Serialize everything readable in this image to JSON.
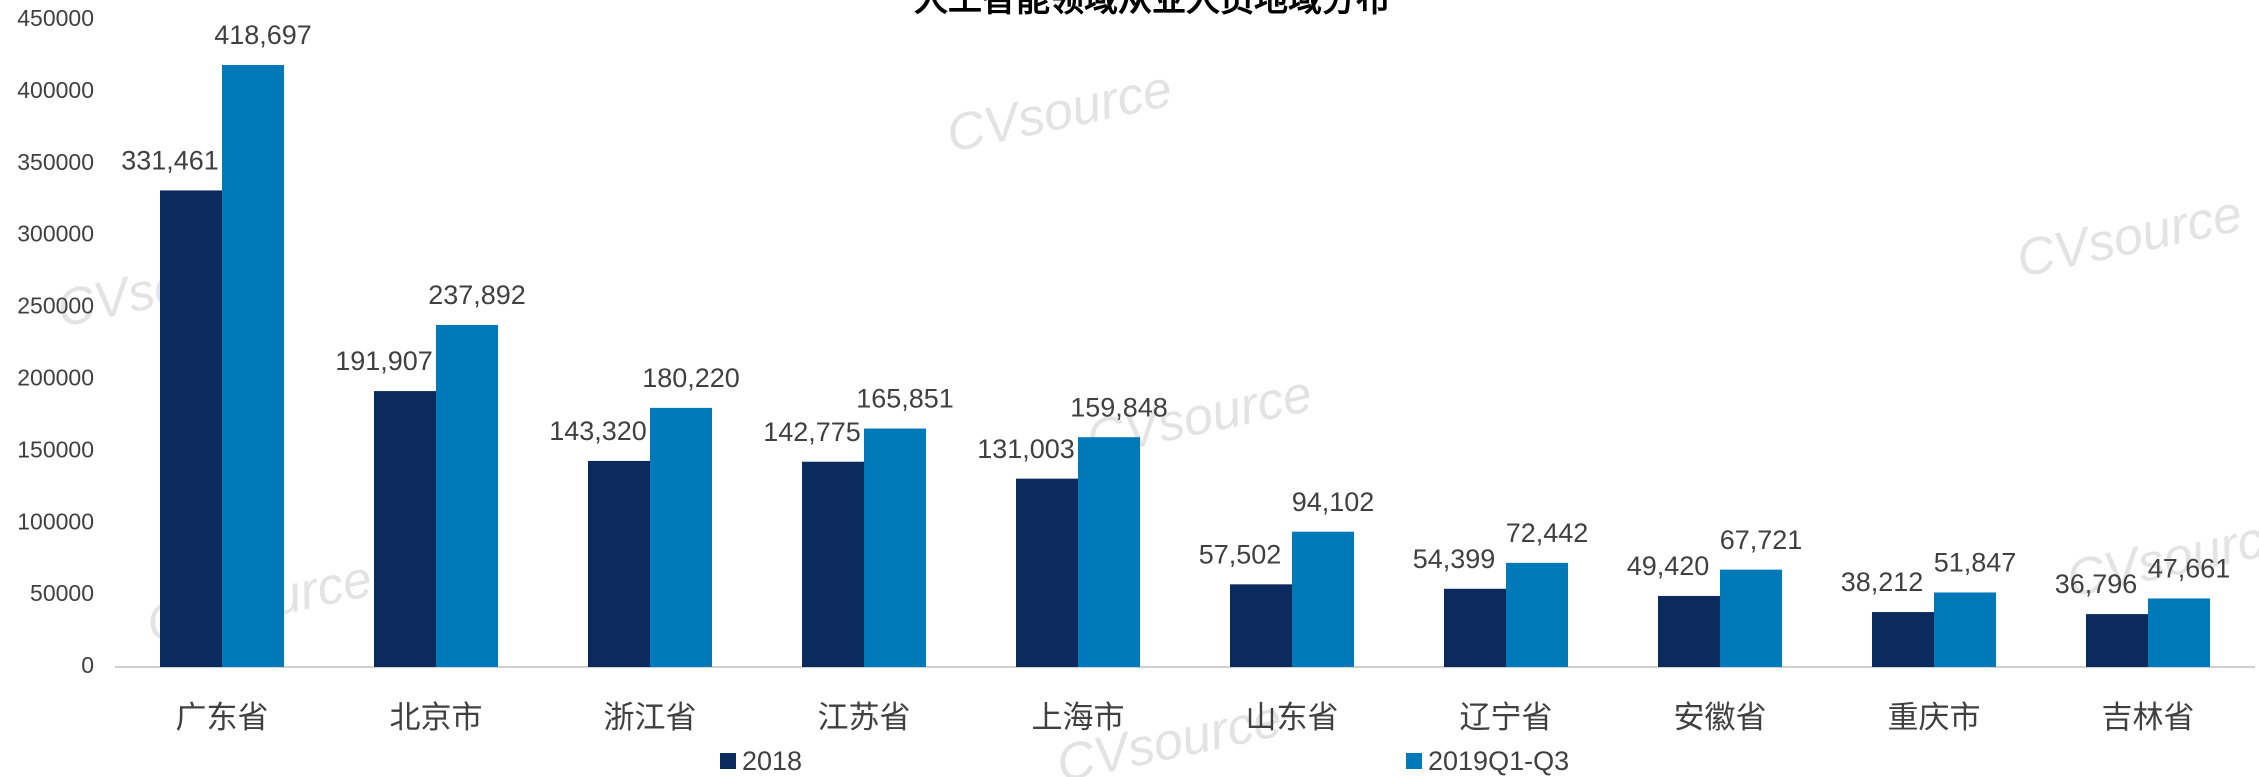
{
  "chart_data": {
    "type": "bar",
    "title": "人工智能领域从业人员地域分布",
    "watermark": "CVsource",
    "categories": [
      "广东省",
      "北京市",
      "浙江省",
      "江苏省",
      "上海市",
      "山东省",
      "辽宁省",
      "安徽省",
      "重庆市",
      "吉林省"
    ],
    "series": [
      {
        "name": "2018",
        "color": "#0b2a5e",
        "values": [
          331461,
          191907,
          143320,
          142775,
          131003,
          57502,
          54399,
          49420,
          38212,
          36796
        ],
        "value_labels": [
          "331,461",
          "191,907",
          "143,320",
          "142,775",
          "131,003",
          "57,502",
          "54,399",
          "49,420",
          "38,212",
          "36,796"
        ]
      },
      {
        "name": "2019Q1-Q3",
        "color": "#0079b9",
        "values": [
          418697,
          237892,
          180220,
          165851,
          159848,
          94102,
          72442,
          67721,
          51847,
          47661
        ],
        "value_labels": [
          "418,697",
          "237,892",
          "180,220",
          "165,851",
          "159,848",
          "94,102",
          "72,442",
          "67,721",
          "51,847",
          "47,661"
        ]
      }
    ],
    "ylim": [
      0,
      450000
    ],
    "yticks": [
      0,
      50000,
      100000,
      150000,
      200000,
      250000,
      300000,
      350000,
      400000,
      450000
    ],
    "grid": false,
    "legend": "bottom"
  }
}
